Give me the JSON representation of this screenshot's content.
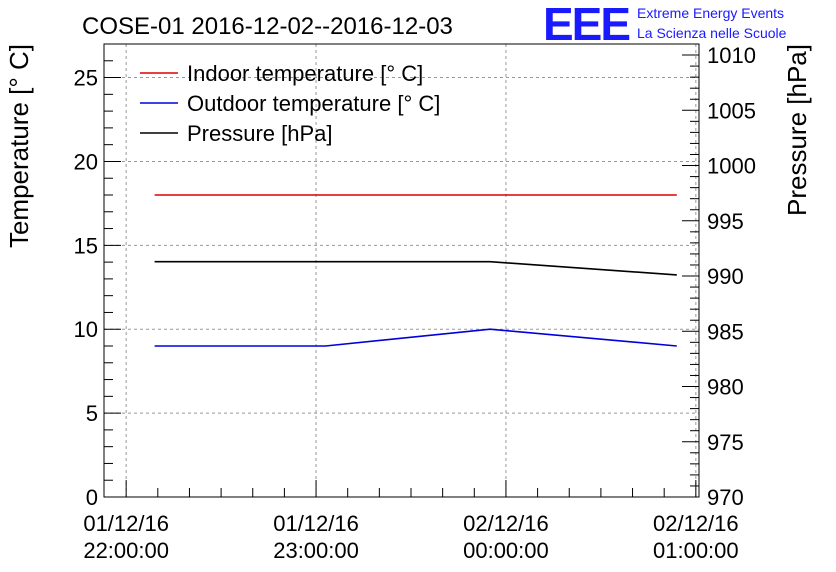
{
  "header": {
    "title": "COSE-01 2016-12-02--2016-12-03",
    "logo_text": "EEE",
    "logo_line1": "Extreme Energy Events",
    "logo_line2": "La Scienza nelle Scuole"
  },
  "chart_data": {
    "type": "line",
    "title": "COSE-01 2016-12-02--2016-12-03",
    "ylabel_left": "Temperature [° C]",
    "ylabel_right": "Pressure [hPa]",
    "ylim_left": [
      0,
      27
    ],
    "ylim_right": [
      970,
      1011
    ],
    "yticks_left": [
      0,
      5,
      10,
      15,
      20,
      25
    ],
    "yticks_right": [
      970,
      975,
      980,
      985,
      990,
      995,
      1000,
      1005,
      1010
    ],
    "xlim": [
      "2016-12-01 21:53",
      "2016-12-02 01:01"
    ],
    "xticks": [
      {
        "t": "2016-12-01 22:00",
        "line1": "01/12/16",
        "line2": "22:00:00"
      },
      {
        "t": "2016-12-01 23:00",
        "line1": "01/12/16",
        "line2": "23:00:00"
      },
      {
        "t": "2016-12-02 00:00",
        "line1": "02/12/16",
        "line2": "00:00:00"
      },
      {
        "t": "2016-12-02 01:00",
        "line1": "02/12/16",
        "line2": "01:00:00"
      }
    ],
    "grid": true,
    "legend_position": "top-left",
    "series": [
      {
        "name": "Indoor temperature [° C]",
        "color": "#e00000",
        "axis": "left",
        "points": [
          [
            "2016-12-01 22:09",
            18
          ],
          [
            "2016-12-02 00:54",
            18
          ]
        ]
      },
      {
        "name": "Outdoor temperature [° C]",
        "color": "#0000dd",
        "axis": "left",
        "points": [
          [
            "2016-12-01 22:09",
            9
          ],
          [
            "2016-12-01 23:03",
            9
          ],
          [
            "2016-12-01 23:55",
            10
          ],
          [
            "2016-12-02 00:54",
            9
          ]
        ]
      },
      {
        "name": "Pressure [hPa]",
        "color": "#000000",
        "axis": "right",
        "points": [
          [
            "2016-12-01 22:09",
            991.3
          ],
          [
            "2016-12-01 23:55",
            991.3
          ],
          [
            "2016-12-02 00:54",
            990.1
          ]
        ]
      }
    ]
  }
}
